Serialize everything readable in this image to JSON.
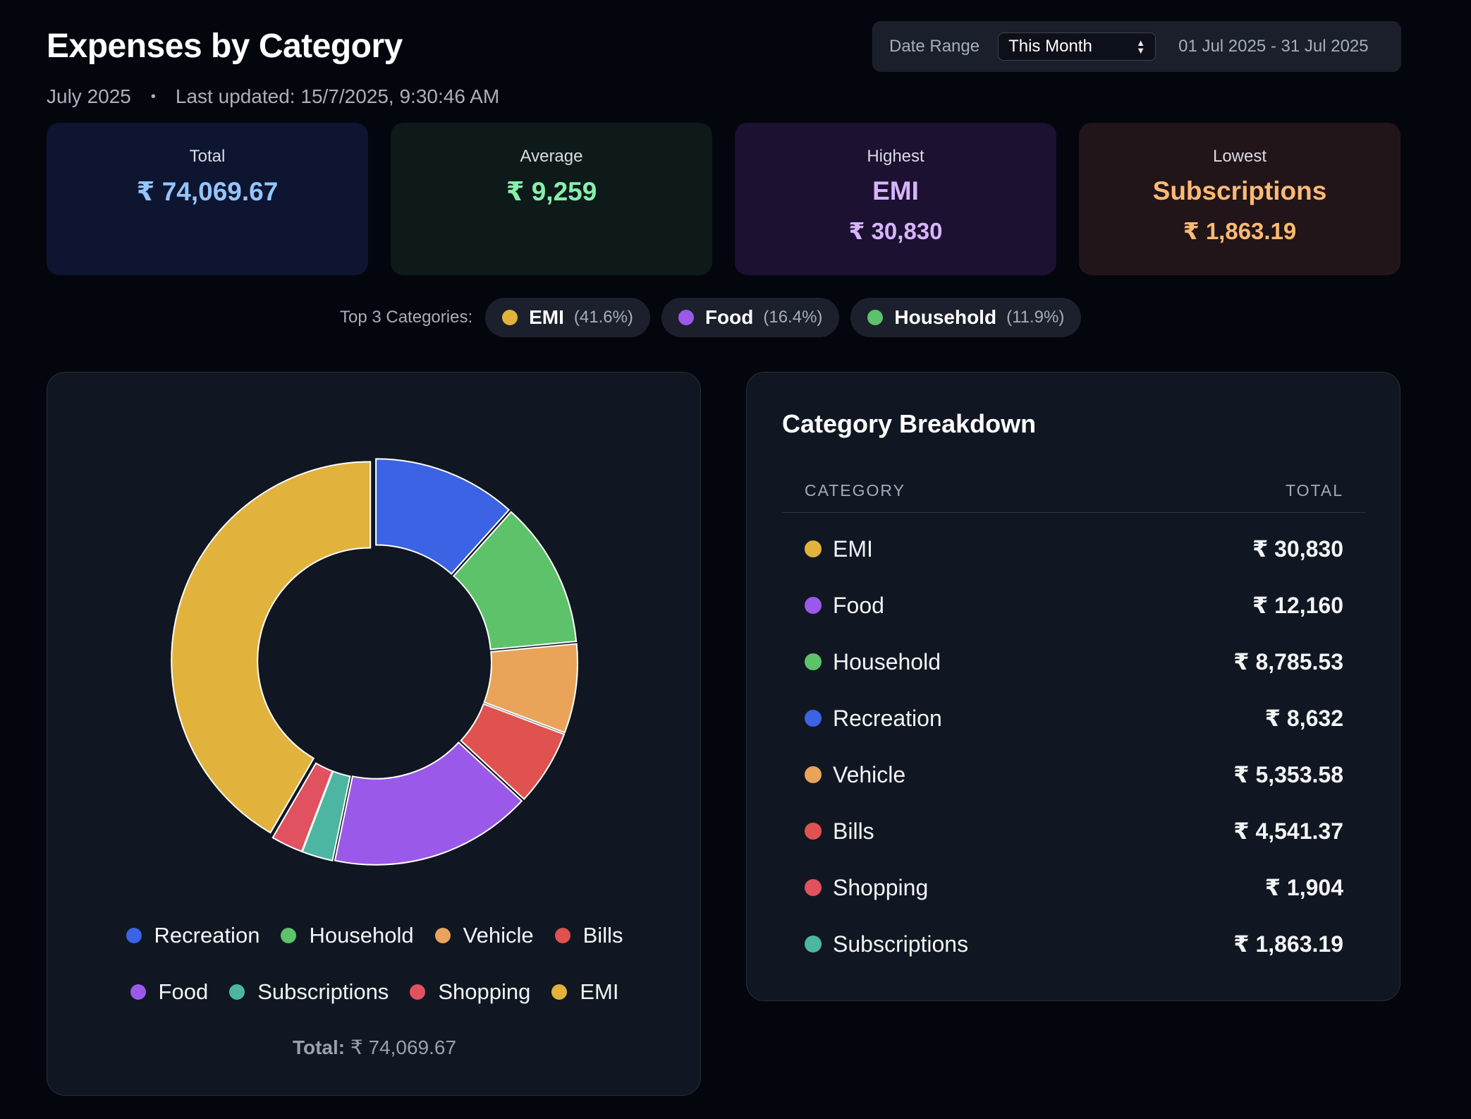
{
  "header": {
    "title": "Expenses by Category",
    "period": "July 2025",
    "separator": "•",
    "last_updated": "Last updated: 15/7/2025, 9:30:46 AM"
  },
  "date_panel": {
    "label": "Date Range",
    "selected": "This Month",
    "range": "01 Jul 2025 - 31 Jul 2025"
  },
  "stats": {
    "total": {
      "label": "Total",
      "value": "₹ 74,069.67"
    },
    "average": {
      "label": "Average",
      "value": "₹ 9,259"
    },
    "highest": {
      "label": "Highest",
      "name": "EMI",
      "value": "₹ 30,830"
    },
    "lowest": {
      "label": "Lowest",
      "name": "Subscriptions",
      "value": "₹ 1,863.19"
    }
  },
  "colors": {
    "stat_total_bg": "#0d1530",
    "stat_total_fg": "#93c5fd",
    "stat_average_bg": "#0e1a1a",
    "stat_average_fg": "#86efac",
    "stat_highest_bg": "#1c1131",
    "stat_highest_fg": "#d8b4fe",
    "stat_lowest_bg": "#22151a",
    "stat_lowest_fg": "#fdba74"
  },
  "top3": {
    "label": "Top 3 Categories:",
    "items": [
      {
        "name": "EMI",
        "pct": "(41.6%)",
        "color": "#e1b33d"
      },
      {
        "name": "Food",
        "pct": "(16.4%)",
        "color": "#9b59ea"
      },
      {
        "name": "Household",
        "pct": "(11.9%)",
        "color": "#5ec26a"
      }
    ]
  },
  "chart_data": {
    "type": "pie",
    "style": "donut",
    "legend_position": "bottom",
    "slices": [
      {
        "label": "Recreation",
        "value": 8632,
        "color": "#3b63e4"
      },
      {
        "label": "Household",
        "value": 8785.53,
        "color": "#5ec26a"
      },
      {
        "label": "Vehicle",
        "value": 5353.58,
        "color": "#e9a45a"
      },
      {
        "label": "Bills",
        "value": 4541.37,
        "color": "#df5250"
      },
      {
        "label": "Food",
        "value": 12160,
        "color": "#9b59ea"
      },
      {
        "label": "Subscriptions",
        "value": 1863.19,
        "color": "#4db6a2"
      },
      {
        "label": "Shopping",
        "value": 1904,
        "color": "#e0525f"
      },
      {
        "label": "EMI",
        "value": 30830,
        "color": "#e1b33d"
      }
    ],
    "total_label": "Total:",
    "total_value": "₹ 74,069.67"
  },
  "breakdown": {
    "title": "Category Breakdown",
    "col_category": "CATEGORY",
    "col_total": "TOTAL",
    "rows": [
      {
        "name": "EMI",
        "total": "₹ 30,830",
        "color": "#e1b33d"
      },
      {
        "name": "Food",
        "total": "₹ 12,160",
        "color": "#9b59ea"
      },
      {
        "name": "Household",
        "total": "₹ 8,785.53",
        "color": "#5ec26a"
      },
      {
        "name": "Recreation",
        "total": "₹ 8,632",
        "color": "#3b63e4"
      },
      {
        "name": "Vehicle",
        "total": "₹ 5,353.58",
        "color": "#e9a45a"
      },
      {
        "name": "Bills",
        "total": "₹ 4,541.37",
        "color": "#df5250"
      },
      {
        "name": "Shopping",
        "total": "₹ 1,904",
        "color": "#e0525f"
      },
      {
        "name": "Subscriptions",
        "total": "₹ 1,863.19",
        "color": "#4db6a2"
      }
    ]
  }
}
